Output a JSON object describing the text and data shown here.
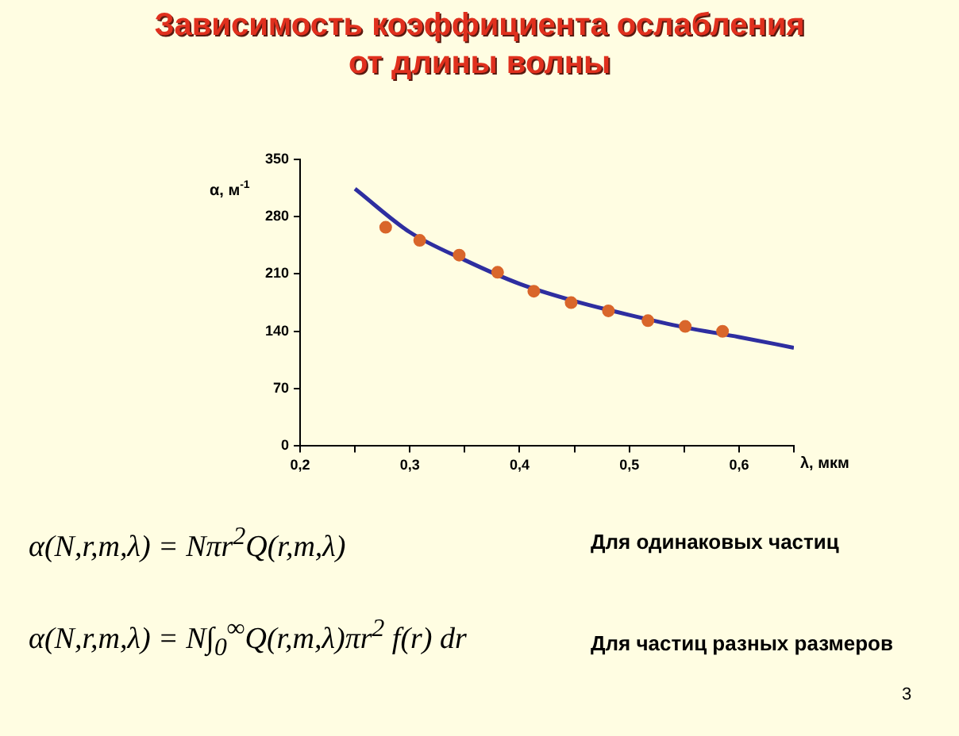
{
  "chart_data": {
    "type": "scatter",
    "title": "Зависимость коэффициента ослабления от длины волны",
    "xlabel": "λ, мкм",
    "ylabel": "α, м$^{-1}$",
    "xlim": [
      0.2,
      0.65
    ],
    "xticks": [
      {
        "value": 0.2,
        "label": "0,2"
      },
      {
        "value": 0.25,
        "label": null
      },
      {
        "value": 0.3,
        "label": "0,3"
      },
      {
        "value": 0.35,
        "label": null
      },
      {
        "value": 0.4,
        "label": "0,4"
      },
      {
        "value": 0.45,
        "label": null
      },
      {
        "value": 0.5,
        "label": "0,5"
      },
      {
        "value": 0.55,
        "label": null
      },
      {
        "value": 0.6,
        "label": "0,6"
      },
      {
        "value": 0.65,
        "label": null
      }
    ],
    "ylim": [
      0,
      350
    ],
    "yticks": [
      0,
      70,
      140,
      210,
      280,
      350
    ],
    "grid": false,
    "legend": false,
    "marker": "circle",
    "series": [
      {
        "color": "#d9662b",
        "x": [
          0.278,
          0.309,
          0.345,
          0.38,
          0.413,
          0.447,
          0.481,
          0.517,
          0.551,
          0.585
        ],
        "values": [
          267,
          251,
          233,
          212,
          189,
          175,
          165,
          153,
          146,
          140
        ]
      },
      {
        "type": "line",
        "color": "#2e2ea0",
        "marker": "none",
        "x": [
          0.25,
          0.3,
          0.35,
          0.4,
          0.45,
          0.5,
          0.55,
          0.6,
          0.65
        ],
        "values": [
          314,
          261,
          227,
          198,
          177,
          160,
          145,
          133,
          120
        ]
      }
    ],
    "annotations": [
      "α(N,r,m,λ) = Nπr$^{2}$Q(r,m,λ)",
      "Для одинаковых частиц",
      "α(N,r,m,λ) = N∫$_{0}$$^{∞}$Q(r,m,λ)πr$^{2}$ f(r) dr",
      "Для частиц разных размеров",
      "3"
    ]
  }
}
